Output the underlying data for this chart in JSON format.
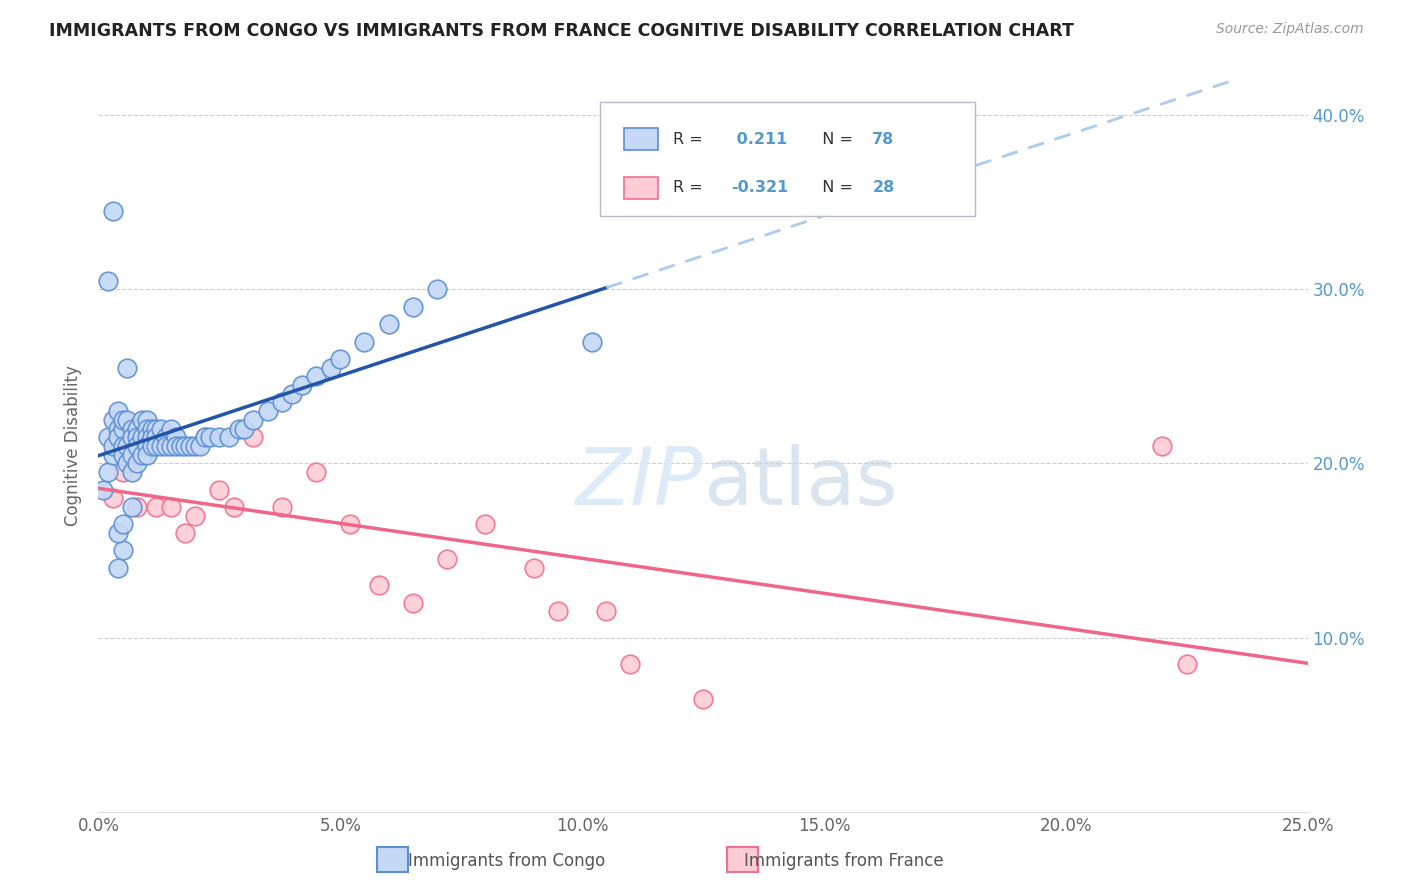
{
  "title": "IMMIGRANTS FROM CONGO VS IMMIGRANTS FROM FRANCE COGNITIVE DISABILITY CORRELATION CHART",
  "source": "Source: ZipAtlas.com",
  "ylabel": "Cognitive Disability",
  "x_tick_values": [
    0.0,
    5.0,
    10.0,
    15.0,
    20.0,
    25.0
  ],
  "y_tick_values": [
    10.0,
    20.0,
    30.0,
    40.0
  ],
  "xlim": [
    0.0,
    25.0
  ],
  "ylim": [
    0.0,
    42.0
  ],
  "congo_R": 0.211,
  "congo_N": 78,
  "france_R": -0.321,
  "france_N": 28,
  "congo_fill_color": "#C5D8F5",
  "congo_edge_color": "#5B8FD4",
  "france_fill_color": "#FFCCD5",
  "france_edge_color": "#F07090",
  "trend_solid_color": "#2255AA",
  "trend_dashed_color": "#AACCEE",
  "trend_france_color": "#EE6688",
  "legend_label_congo": "Immigrants from Congo",
  "legend_label_france": "Immigrants from France",
  "background_color": "#FFFFFF",
  "grid_color": "#CCCCCC",
  "right_axis_color": "#5599CC",
  "congo_x": [
    0.1,
    0.2,
    0.2,
    0.3,
    0.3,
    0.3,
    0.4,
    0.4,
    0.4,
    0.5,
    0.5,
    0.5,
    0.5,
    0.6,
    0.6,
    0.6,
    0.7,
    0.7,
    0.7,
    0.7,
    0.8,
    0.8,
    0.8,
    0.8,
    0.9,
    0.9,
    0.9,
    1.0,
    1.0,
    1.0,
    1.0,
    1.0,
    1.1,
    1.1,
    1.1,
    1.2,
    1.2,
    1.2,
    1.3,
    1.3,
    1.4,
    1.4,
    1.5,
    1.5,
    1.6,
    1.6,
    1.7,
    1.8,
    1.9,
    2.0,
    2.1,
    2.2,
    2.3,
    2.5,
    2.7,
    2.9,
    3.0,
    3.2,
    3.5,
    3.8,
    4.0,
    4.2,
    4.5,
    4.8,
    5.0,
    5.5,
    6.0,
    6.5,
    7.0,
    0.5,
    0.4,
    0.4,
    0.5,
    0.6,
    0.7,
    10.2,
    0.3,
    0.2
  ],
  "congo_y": [
    18.5,
    19.5,
    21.5,
    20.5,
    22.5,
    21.0,
    22.0,
    21.5,
    23.0,
    22.0,
    21.0,
    20.5,
    22.5,
    22.5,
    21.0,
    20.0,
    22.0,
    21.5,
    20.5,
    19.5,
    22.0,
    21.5,
    21.0,
    20.0,
    22.5,
    21.5,
    20.5,
    22.5,
    22.0,
    21.5,
    21.0,
    20.5,
    22.0,
    21.5,
    21.0,
    22.0,
    21.5,
    21.0,
    22.0,
    21.0,
    21.5,
    21.0,
    22.0,
    21.0,
    21.5,
    21.0,
    21.0,
    21.0,
    21.0,
    21.0,
    21.0,
    21.5,
    21.5,
    21.5,
    21.5,
    22.0,
    22.0,
    22.5,
    23.0,
    23.5,
    24.0,
    24.5,
    25.0,
    25.5,
    26.0,
    27.0,
    28.0,
    29.0,
    30.0,
    15.0,
    14.0,
    16.0,
    16.5,
    25.5,
    17.5,
    27.0,
    34.5,
    30.5
  ],
  "france_x": [
    0.3,
    0.5,
    0.6,
    0.7,
    0.8,
    1.0,
    1.2,
    1.5,
    1.8,
    2.0,
    2.2,
    2.5,
    2.8,
    3.2,
    3.8,
    4.5,
    5.2,
    5.8,
    6.5,
    7.2,
    8.0,
    9.0,
    9.5,
    10.5,
    11.0,
    12.5,
    22.0,
    22.5
  ],
  "france_y": [
    18.0,
    19.5,
    20.5,
    21.0,
    17.5,
    21.5,
    17.5,
    17.5,
    16.0,
    17.0,
    21.5,
    18.5,
    17.5,
    21.5,
    17.5,
    19.5,
    16.5,
    13.0,
    12.0,
    14.5,
    16.5,
    14.0,
    11.5,
    11.5,
    8.5,
    6.5,
    21.0,
    8.5
  ],
  "trend_solid_x_start": 0.0,
  "trend_solid_x_end": 10.5,
  "trend_dashed_x_start": 10.5,
  "trend_dashed_x_end": 25.0
}
